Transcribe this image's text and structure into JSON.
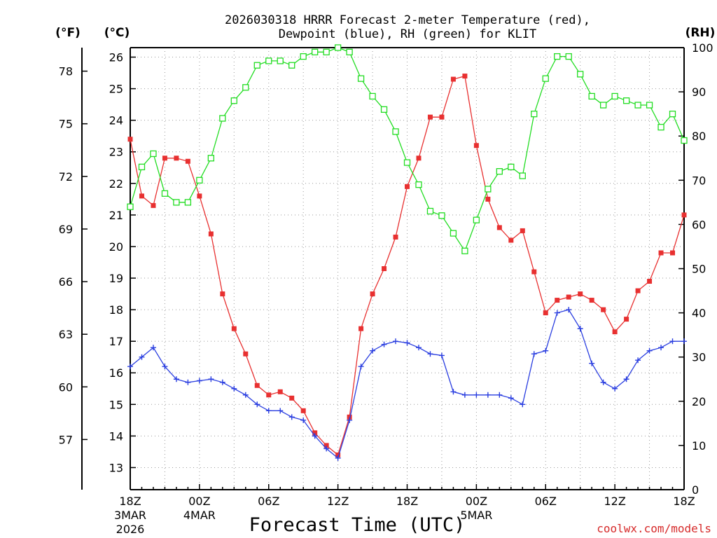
{
  "chart_data": {
    "type": "line",
    "title_line1": "2026030318 HRRR Forecast 2-meter Temperature (red),",
    "title_line2": "Dewpoint (blue), RH (green) for KLIT",
    "xlabel": "Forecast Time (UTC)",
    "credit": "coolwx.com/models",
    "units": {
      "f": "(°F)",
      "c": "(°C)",
      "rh": "(RH)"
    },
    "forecast_hours": [
      0,
      1,
      2,
      3,
      4,
      5,
      6,
      7,
      8,
      9,
      10,
      11,
      12,
      13,
      14,
      15,
      16,
      17,
      18,
      19,
      20,
      21,
      22,
      23,
      24,
      25,
      26,
      27,
      28,
      29,
      30,
      31,
      32,
      33,
      34,
      35,
      36,
      37,
      38,
      39,
      40,
      41,
      42,
      43,
      44,
      45,
      46,
      47,
      48
    ],
    "x_range_hours": [
      0,
      48
    ],
    "x_ticks": [
      {
        "hour": 0,
        "label": "18Z",
        "date": "3MAR",
        "year": "2026"
      },
      {
        "hour": 6,
        "label": "00Z",
        "date": "4MAR"
      },
      {
        "hour": 12,
        "label": "06Z"
      },
      {
        "hour": 18,
        "label": "12Z"
      },
      {
        "hour": 24,
        "label": "18Z"
      },
      {
        "hour": 30,
        "label": "00Z",
        "date": "5MAR"
      },
      {
        "hour": 36,
        "label": "06Z"
      },
      {
        "hour": 42,
        "label": "12Z"
      },
      {
        "hour": 48,
        "label": "18Z"
      }
    ],
    "left_c_axis": {
      "label": "(°C)",
      "range": [
        12.3,
        26.3
      ],
      "ticks": [
        13,
        14,
        15,
        16,
        17,
        18,
        19,
        20,
        21,
        22,
        23,
        24,
        25,
        26
      ]
    },
    "left_f_axis": {
      "label": "(°F)",
      "ticks": [
        57,
        60,
        63,
        66,
        69,
        72,
        75,
        78
      ]
    },
    "right_rh_axis": {
      "label": "(RH)",
      "range": [
        0,
        100
      ],
      "ticks": [
        0,
        10,
        20,
        30,
        40,
        50,
        60,
        70,
        80,
        90,
        100
      ]
    },
    "series": [
      {
        "name": "2-meter Temperature",
        "units": "C",
        "color": "#e83030",
        "marker": "filled-square",
        "values": [
          23.4,
          21.6,
          21.3,
          22.8,
          22.8,
          22.7,
          21.6,
          20.4,
          18.5,
          17.4,
          16.6,
          15.6,
          15.3,
          15.4,
          15.2,
          14.8,
          14.1,
          13.7,
          13.4,
          14.6,
          17.4,
          18.5,
          19.3,
          20.3,
          21.9,
          22.8,
          24.1,
          24.1,
          25.3,
          25.4,
          23.2,
          21.5,
          20.6,
          20.2,
          20.5,
          19.2,
          17.9,
          18.3,
          18.4,
          18.5,
          18.3,
          18.0,
          17.3,
          17.7,
          18.6,
          18.9,
          19.8,
          19.8,
          21.0
        ]
      },
      {
        "name": "Dewpoint",
        "units": "C",
        "color": "#2a3ee0",
        "marker": "plus",
        "values": [
          16.2,
          16.5,
          16.8,
          16.2,
          15.8,
          15.7,
          15.75,
          15.8,
          15.7,
          15.5,
          15.3,
          15.0,
          14.8,
          14.8,
          14.6,
          14.5,
          14.0,
          13.6,
          13.3,
          14.5,
          16.2,
          16.7,
          16.9,
          17.0,
          16.95,
          16.8,
          16.6,
          16.55,
          15.4,
          15.3,
          15.3,
          15.3,
          15.3,
          15.2,
          15.0,
          16.6,
          16.7,
          17.9,
          18.0,
          17.4,
          16.3,
          15.7,
          15.5,
          15.8,
          16.4,
          16.7,
          16.8,
          17.0,
          17.0
        ]
      },
      {
        "name": "Relative Humidity",
        "units": "%",
        "color": "#22dd22",
        "marker": "open-square",
        "values": [
          64,
          73,
          76,
          67,
          65,
          65,
          70,
          75,
          84,
          88,
          91,
          96,
          97,
          97,
          96,
          98,
          99,
          99,
          100,
          99,
          93,
          89,
          86,
          81,
          74,
          69,
          63,
          62,
          58,
          54,
          61,
          68,
          72,
          73,
          71,
          85,
          93,
          98,
          98,
          94,
          89,
          87,
          89,
          88,
          87,
          87,
          82,
          85,
          79
        ]
      }
    ]
  }
}
